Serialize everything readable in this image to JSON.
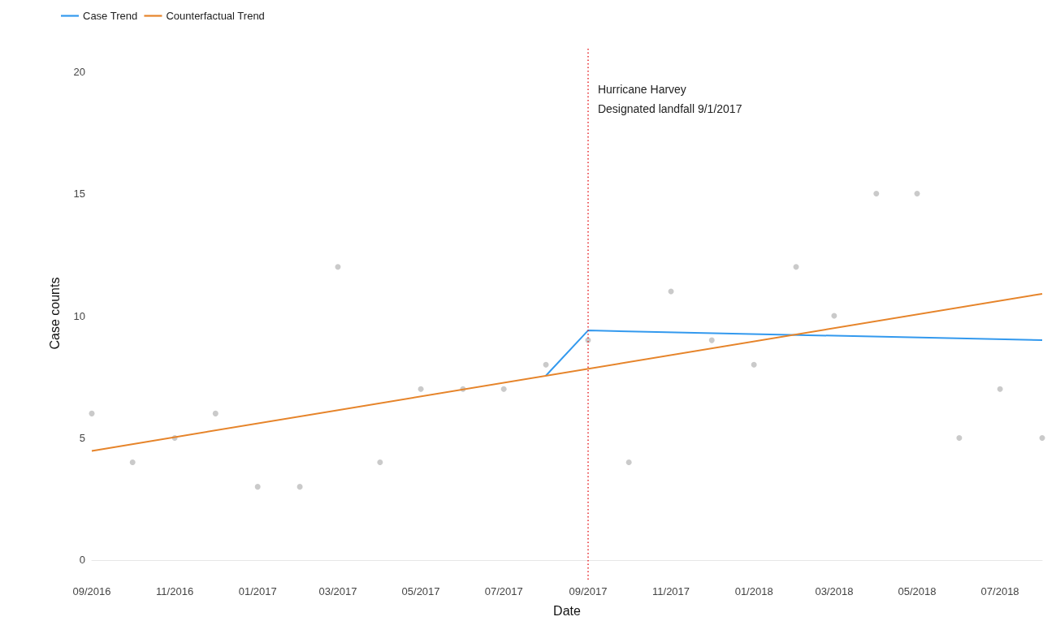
{
  "chart_data": {
    "type": "scatter",
    "xlabel": "Date",
    "ylabel": "Case counts",
    "xlim": [
      "2016-09",
      "2018-08"
    ],
    "ylim": [
      -0.8,
      21
    ],
    "yticks": [
      0,
      5,
      10,
      15,
      20
    ],
    "xticks": [
      {
        "value": "2016-09",
        "label": "09/2016"
      },
      {
        "value": "2016-11",
        "label": "11/2016"
      },
      {
        "value": "2017-01",
        "label": "01/2017"
      },
      {
        "value": "2017-03",
        "label": "03/2017"
      },
      {
        "value": "2017-05",
        "label": "05/2017"
      },
      {
        "value": "2017-07",
        "label": "07/2017"
      },
      {
        "value": "2017-09",
        "label": "09/2017"
      },
      {
        "value": "2017-11",
        "label": "11/2017"
      },
      {
        "value": "2018-01",
        "label": "01/2018"
      },
      {
        "value": "2018-03",
        "label": "03/2018"
      },
      {
        "value": "2018-05",
        "label": "05/2018"
      },
      {
        "value": "2018-07",
        "label": "07/2018"
      }
    ],
    "grid": false,
    "legend": "top left",
    "series": [
      {
        "marker": "circle",
        "color": "#bdbdbd",
        "x": [
          "2016-09",
          "2016-10",
          "2016-11",
          "2016-12",
          "2017-01",
          "2017-02",
          "2017-03",
          "2017-04",
          "2017-05",
          "2017-06",
          "2017-07",
          "2017-08",
          "2017-09",
          "2017-10",
          "2017-11",
          "2017-12",
          "2018-01",
          "2018-02",
          "2018-03",
          "2018-04",
          "2018-05",
          "2018-06",
          "2018-07",
          "2018-08"
        ],
        "values": [
          6,
          4,
          5,
          6,
          3,
          3,
          12,
          4,
          7,
          7,
          7,
          8,
          9,
          4,
          11,
          9,
          8,
          12,
          10,
          15,
          15,
          5,
          7,
          5
        ]
      },
      {
        "type": "line",
        "marker": "none",
        "name": "Case Trend",
        "color": "#3399ee",
        "x": [
          "2017-08",
          "2017-09",
          "2018-08"
        ],
        "values": [
          7.55,
          9.4,
          9.0
        ]
      },
      {
        "type": "line",
        "marker": "none",
        "name": "Counterfactual Trend",
        "color": "#e6842a",
        "x": [
          "2016-09",
          "2018-08"
        ],
        "values": [
          4.47,
          10.9
        ]
      }
    ],
    "ref_lines": [
      {
        "axis": "x",
        "value": "2017-09-01",
        "label": "Hurricane Harvey\nDesignated landfall 9/1/2017",
        "color": "#e8262a",
        "line_style": "dotted"
      }
    ]
  }
}
